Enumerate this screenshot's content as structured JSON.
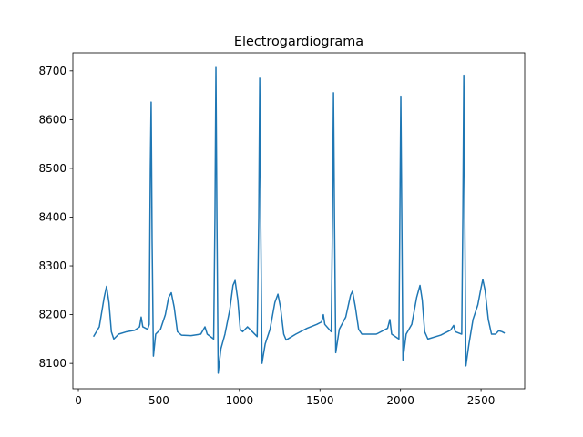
{
  "chart_data": {
    "type": "line",
    "title": "Electrogardiograma",
    "x": [
      94,
      130,
      160,
      175,
      190,
      205,
      220,
      250,
      300,
      350,
      380,
      390,
      400,
      430,
      440,
      447,
      452,
      458,
      466,
      480,
      510,
      540,
      560,
      577,
      595,
      615,
      640,
      700,
      760,
      786,
      800,
      840,
      848,
      854,
      860,
      868,
      885,
      910,
      940,
      960,
      973,
      990,
      1005,
      1020,
      1050,
      1080,
      1110,
      1120,
      1126,
      1132,
      1140,
      1160,
      1190,
      1220,
      1239,
      1255,
      1275,
      1290,
      1350,
      1420,
      1480,
      1510,
      1521,
      1530,
      1570,
      1578,
      1584,
      1590,
      1598,
      1620,
      1660,
      1690,
      1702,
      1720,
      1740,
      1760,
      1850,
      1920,
      1934,
      1945,
      1990,
      1996,
      2002,
      2008,
      2015,
      2035,
      2070,
      2100,
      2121,
      2135,
      2150,
      2170,
      2250,
      2310,
      2330,
      2340,
      2380,
      2387,
      2393,
      2399,
      2406,
      2425,
      2450,
      2480,
      2500,
      2511,
      2525,
      2545,
      2565,
      2590,
      2610,
      2630,
      2647
    ],
    "series": [
      {
        "color": "#1f77b4",
        "values": [
          8155,
          8175,
          8235,
          8258,
          8225,
          8165,
          8150,
          8160,
          8165,
          8168,
          8175,
          8195,
          8175,
          8170,
          8180,
          8500,
          8636,
          8350,
          8115,
          8160,
          8170,
          8200,
          8235,
          8245,
          8215,
          8165,
          8158,
          8157,
          8160,
          8175,
          8160,
          8150,
          8400,
          8707,
          8400,
          8080,
          8130,
          8160,
          8210,
          8260,
          8270,
          8230,
          8170,
          8165,
          8175,
          8165,
          8155,
          8400,
          8685,
          8400,
          8100,
          8140,
          8170,
          8225,
          8242,
          8215,
          8160,
          8148,
          8160,
          8172,
          8180,
          8185,
          8200,
          8180,
          8165,
          8400,
          8655,
          8400,
          8122,
          8170,
          8195,
          8240,
          8248,
          8215,
          8170,
          8160,
          8160,
          8172,
          8190,
          8160,
          8150,
          8400,
          8648,
          8400,
          8107,
          8160,
          8180,
          8235,
          8260,
          8230,
          8165,
          8150,
          8158,
          8168,
          8178,
          8165,
          8160,
          8400,
          8691,
          8400,
          8095,
          8140,
          8190,
          8220,
          8255,
          8272,
          8250,
          8190,
          8160,
          8160,
          8167,
          8165,
          8162
        ]
      }
    ],
    "xlim": [
      -34,
      2771
    ],
    "xticks": [
      0,
      500,
      1000,
      1500,
      2000,
      2500
    ],
    "ylim": [
      8048,
      8737
    ],
    "yticks": [
      8100,
      8200,
      8300,
      8400,
      8500,
      8600,
      8700
    ]
  }
}
